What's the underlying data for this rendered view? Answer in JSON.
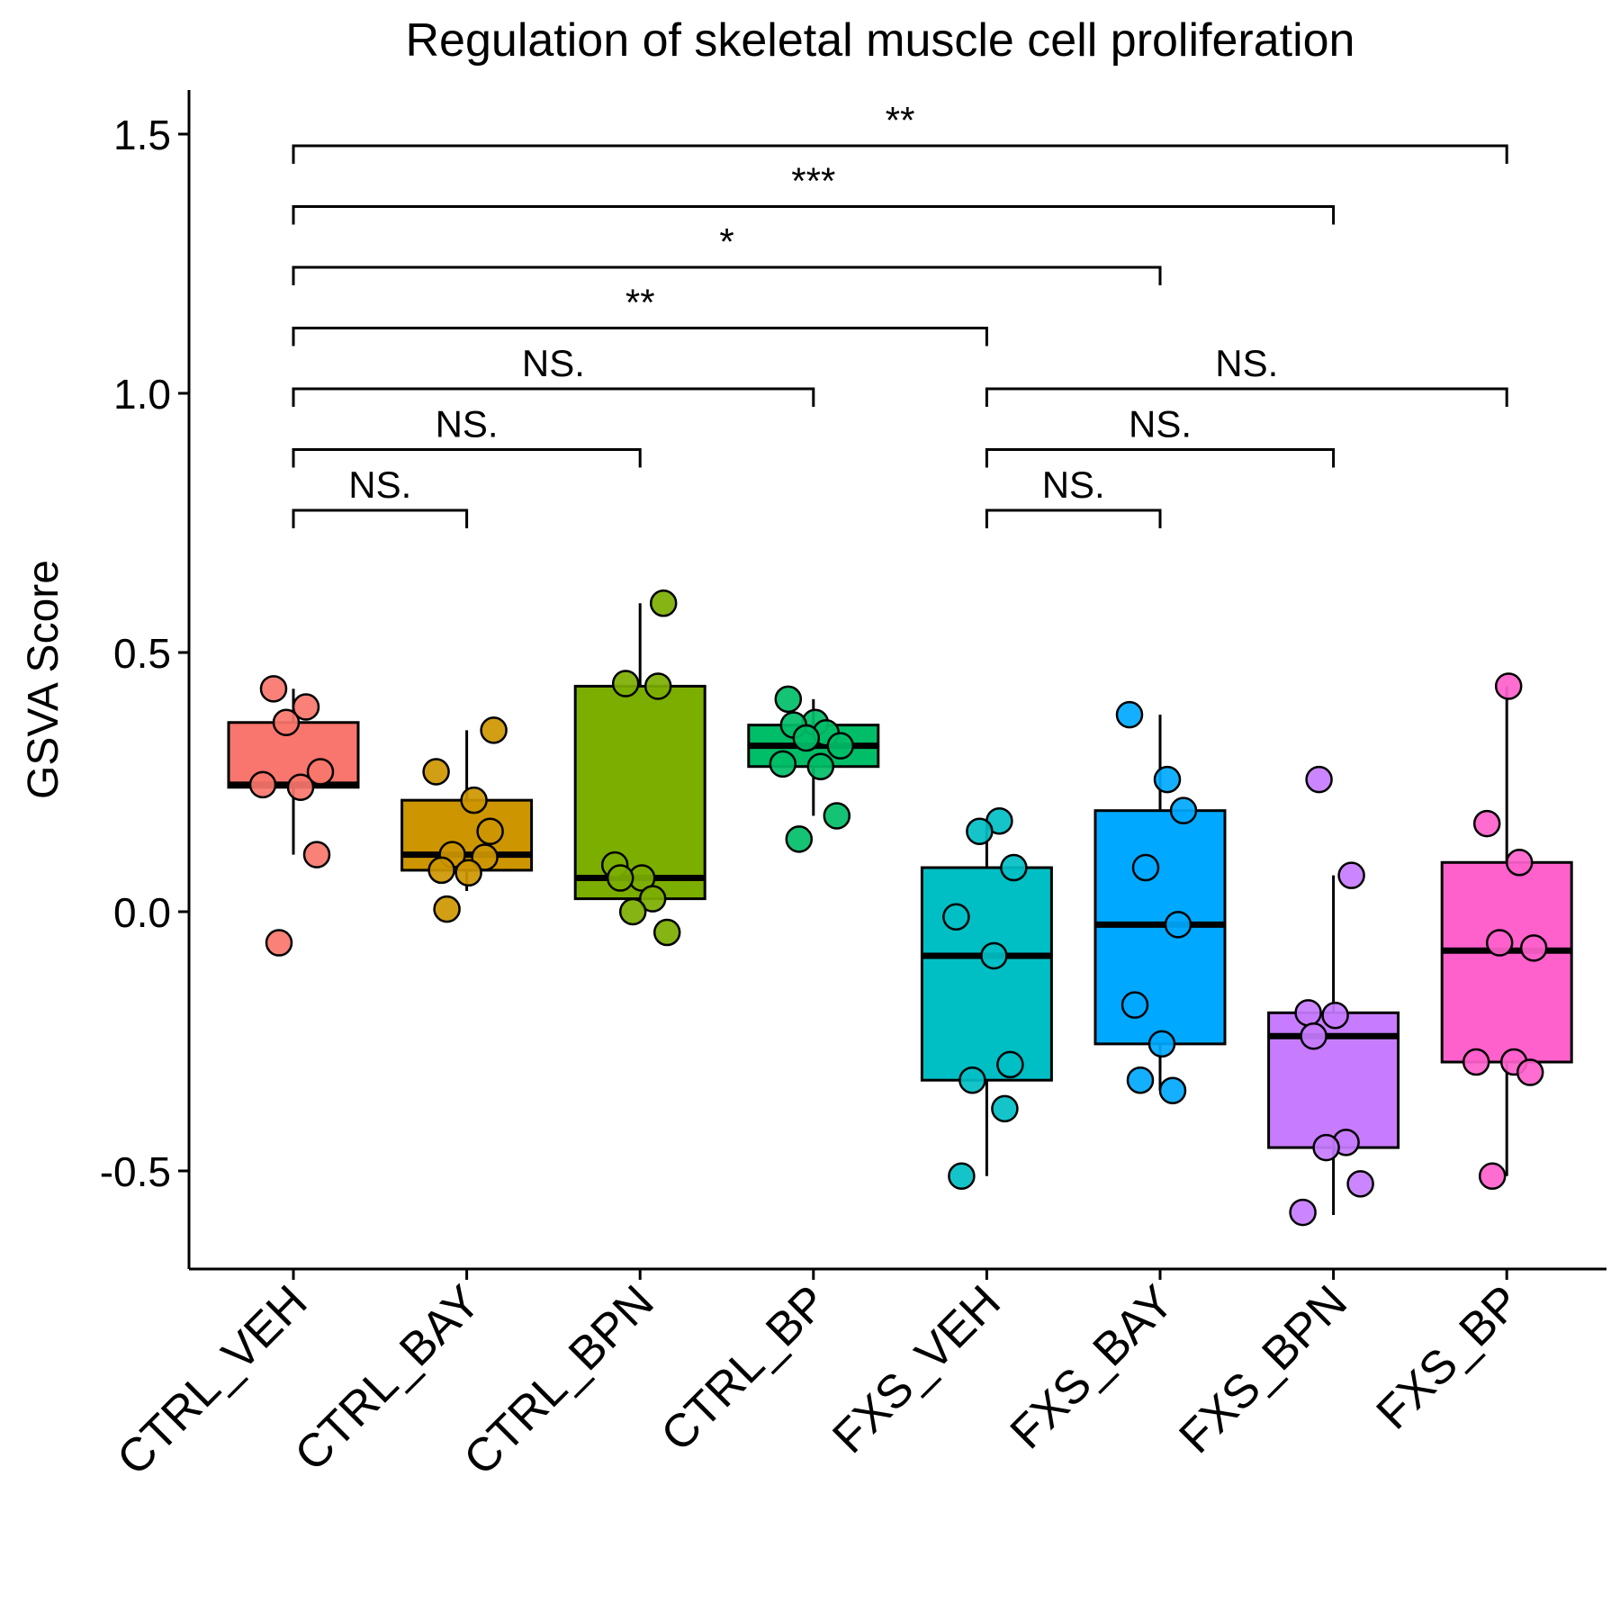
{
  "chart_data": {
    "type": "box",
    "title": "Regulation of skeletal muscle cell proliferation",
    "xlabel": "",
    "ylabel": "GSVA Score",
    "ylim": [
      -0.68,
      1.58
    ],
    "yticks": [
      -0.5,
      0.0,
      0.5,
      1.0,
      1.5
    ],
    "ytick_labels": [
      "-0.5",
      "0.0",
      "0.5",
      "1.0",
      "1.5"
    ],
    "grid": false,
    "legend": "none",
    "categories": [
      "CTRL_VEH",
      "CTRL_BAY",
      "CTRL_BPN",
      "CTRL_BP",
      "FXS_VEH",
      "FXS_BAY",
      "FXS_BPN",
      "FXS_BP"
    ],
    "colors": [
      "#F8766D",
      "#CD9600",
      "#7CAE00",
      "#00BE67",
      "#00BFC4",
      "#00A9FF",
      "#C77CFF",
      "#FF61CC"
    ],
    "boxes": [
      {
        "min": 0.11,
        "q1": 0.24,
        "median": 0.245,
        "q3": 0.365,
        "max": 0.43
      },
      {
        "min": 0.04,
        "q1": 0.08,
        "median": 0.11,
        "q3": 0.215,
        "max": 0.35
      },
      {
        "min": 0.025,
        "q1": 0.025,
        "median": 0.065,
        "q3": 0.435,
        "max": 0.595
      },
      {
        "min": 0.185,
        "q1": 0.28,
        "median": 0.32,
        "q3": 0.36,
        "max": 0.41
      },
      {
        "min": -0.51,
        "q1": -0.325,
        "median": -0.085,
        "q3": 0.085,
        "max": 0.175
      },
      {
        "min": -0.345,
        "q1": -0.255,
        "median": -0.025,
        "q3": 0.195,
        "max": 0.38
      },
      {
        "min": -0.585,
        "q1": -0.455,
        "median": -0.24,
        "q3": -0.195,
        "max": 0.07
      },
      {
        "min": -0.51,
        "q1": -0.29,
        "median": -0.075,
        "q3": 0.095,
        "max": 0.435
      }
    ],
    "points": [
      [
        0.43,
        0.395,
        0.365,
        0.27,
        0.245,
        0.24,
        0.11,
        -0.06
      ],
      [
        0.35,
        0.27,
        0.215,
        0.155,
        0.11,
        0.105,
        0.08,
        0.075,
        0.005
      ],
      [
        0.595,
        0.44,
        0.435,
        0.09,
        0.065,
        0.065,
        0.025,
        0.0,
        -0.04
      ],
      [
        0.41,
        0.365,
        0.36,
        0.345,
        0.335,
        0.32,
        0.285,
        0.28,
        0.185,
        0.14
      ],
      [
        0.175,
        0.155,
        0.085,
        -0.01,
        -0.085,
        -0.295,
        -0.325,
        -0.38,
        -0.51
      ],
      [
        0.38,
        0.255,
        0.195,
        0.085,
        -0.025,
        -0.18,
        -0.255,
        -0.325,
        -0.345
      ],
      [
        0.255,
        0.07,
        -0.195,
        -0.2,
        -0.24,
        -0.445,
        -0.455,
        -0.525,
        -0.58
      ],
      [
        0.435,
        0.17,
        0.095,
        -0.06,
        -0.07,
        -0.29,
        -0.29,
        -0.31,
        -0.51
      ]
    ],
    "comparisons": [
      {
        "from": 0,
        "to": 1,
        "label": "NS.",
        "level": 1
      },
      {
        "from": 0,
        "to": 2,
        "label": "NS.",
        "level": 2
      },
      {
        "from": 0,
        "to": 3,
        "label": "NS.",
        "level": 3
      },
      {
        "from": 0,
        "to": 4,
        "label": "**",
        "level": 4
      },
      {
        "from": 0,
        "to": 5,
        "label": "*",
        "level": 5
      },
      {
        "from": 0,
        "to": 6,
        "label": "***",
        "level": 6
      },
      {
        "from": 0,
        "to": 7,
        "label": "**",
        "level": 7
      },
      {
        "from": 4,
        "to": 5,
        "label": "NS.",
        "level": 1
      },
      {
        "from": 4,
        "to": 6,
        "label": "NS.",
        "level": 2
      },
      {
        "from": 4,
        "to": 7,
        "label": "NS.",
        "level": 3
      }
    ]
  }
}
